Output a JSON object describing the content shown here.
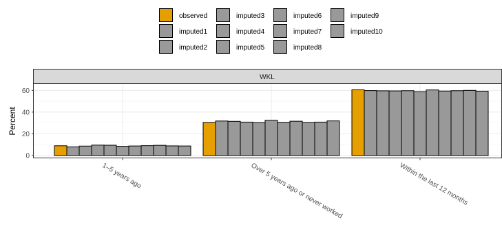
{
  "chart_data": {
    "type": "bar",
    "facet": "WKL",
    "ylabel": "Percent",
    "xlabel": "",
    "ylim": [
      0,
      64
    ],
    "yticks": [
      0,
      20,
      40,
      60
    ],
    "grid": true,
    "legend_position": "top",
    "categories": [
      "1–5 years ago",
      "Over 5 years ago or never worked",
      "Within the last 12 months"
    ],
    "series": [
      {
        "name": "observed",
        "color": "#E69F00",
        "values": [
          9.0,
          30.5,
          60.5
        ]
      },
      {
        "name": "imputed1",
        "color": "#999999",
        "values": [
          8.0,
          31.8,
          59.8
        ]
      },
      {
        "name": "imputed2",
        "color": "#999999",
        "values": [
          8.7,
          31.5,
          59.6
        ]
      },
      {
        "name": "imputed3",
        "color": "#999999",
        "values": [
          9.6,
          30.8,
          59.5
        ]
      },
      {
        "name": "imputed4",
        "color": "#999999",
        "values": [
          9.5,
          30.4,
          59.7
        ]
      },
      {
        "name": "imputed5",
        "color": "#999999",
        "values": [
          8.5,
          32.5,
          58.8
        ]
      },
      {
        "name": "imputed6",
        "color": "#999999",
        "values": [
          8.8,
          30.6,
          60.4
        ]
      },
      {
        "name": "imputed7",
        "color": "#999999",
        "values": [
          9.1,
          31.6,
          59.4
        ]
      },
      {
        "name": "imputed8",
        "color": "#999999",
        "values": [
          9.4,
          30.5,
          59.7
        ]
      },
      {
        "name": "imputed9",
        "color": "#999999",
        "values": [
          8.9,
          30.8,
          60.0
        ]
      },
      {
        "name": "imputed10",
        "color": "#999999",
        "values": [
          8.8,
          31.9,
          59.3
        ]
      }
    ]
  }
}
